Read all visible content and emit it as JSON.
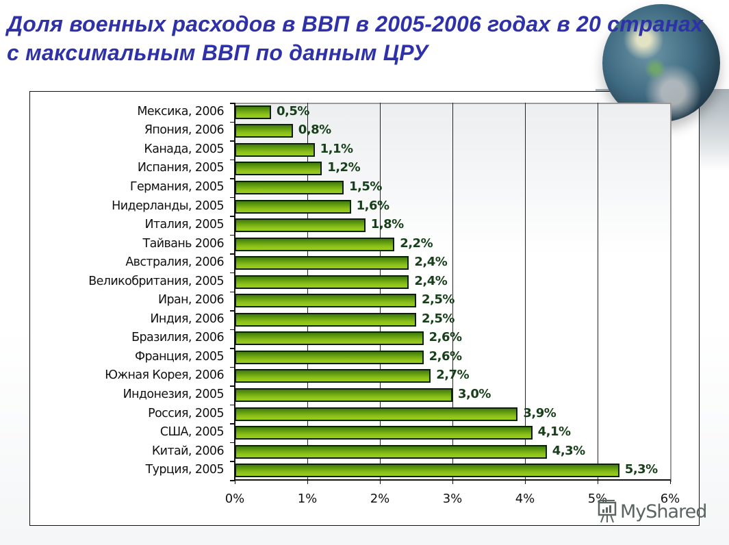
{
  "title": "Доля военных расходов в ВВП в 2005-2006 годах в 20 странах с максимальным ВВП по данным ЦРУ",
  "watermark": {
    "text": "MyShared",
    "icon": "presentation-board-icon"
  },
  "colors": {
    "title": "#2e31a8",
    "bar": "#7cb518",
    "bar_border": "#0d1f05",
    "value_label": "#17401a"
  },
  "chart_data": {
    "type": "bar",
    "orientation": "horizontal",
    "title": "Доля военных расходов в ВВП в 2005-2006 годах в 20 странах с максимальным ВВП по данным ЦРУ",
    "xlabel": "",
    "ylabel": "",
    "xlim": [
      0,
      6
    ],
    "x_ticks": [
      "0%",
      "1%",
      "2%",
      "3%",
      "4%",
      "5%",
      "6%"
    ],
    "grid": "vertical",
    "legend": "none",
    "categories": [
      "Мексика, 2006",
      "Япония, 2006",
      "Канада, 2005",
      "Испания, 2005",
      "Германия, 2005",
      "Нидерланды, 2005",
      "Италия, 2005",
      "Тайвань  2006",
      "Австралия, 2006",
      "Великобритания, 2005",
      "Иран, 2006",
      "Индия, 2006",
      "Бразилия, 2006",
      "Франция, 2005",
      "Южная Корея, 2006",
      "Индонезия, 2005",
      "Россия, 2005",
      "США, 2005",
      "Китай, 2006",
      "Турция, 2005"
    ],
    "values": [
      0.5,
      0.8,
      1.1,
      1.2,
      1.5,
      1.6,
      1.8,
      2.2,
      2.4,
      2.4,
      2.5,
      2.5,
      2.6,
      2.6,
      2.7,
      3.0,
      3.9,
      4.1,
      4.3,
      5.3
    ],
    "value_labels": [
      "0,5%",
      "0,8%",
      "1,1%",
      "1,2%",
      "1,5%",
      "1,6%",
      "1,8%",
      "2,2%",
      "2,4%",
      "2,4%",
      "2,5%",
      "2,5%",
      "2,6%",
      "2,6%",
      "2,7%",
      "3,0%",
      "3,9%",
      "4,1%",
      "4,3%",
      "5,3%"
    ]
  }
}
